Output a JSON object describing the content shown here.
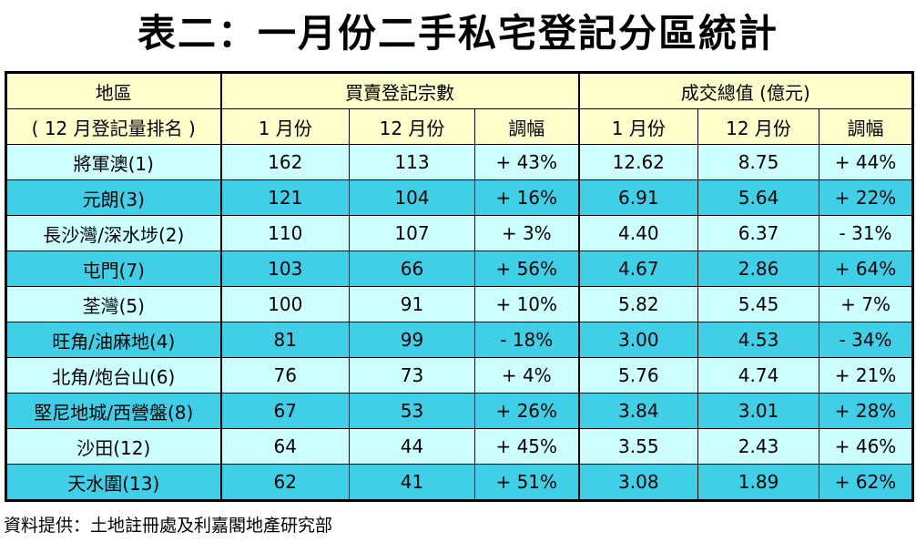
{
  "title": "表二：一月份二手私宅登記分區統計",
  "table": {
    "header_top": [
      "地區",
      "買賣登記宗數",
      "成交總值 (億元)"
    ],
    "header_sub": [
      "( 12 月登記量排名 )",
      "1 月份",
      "12 月份",
      "調幅",
      "1 月份",
      "12 月份",
      "調幅"
    ],
    "rows": [
      [
        "將軍澳(1)",
        "162",
        "113",
        "+ 43%",
        "12.62",
        "8.75",
        "+ 44%"
      ],
      [
        "元朗(3)",
        "121",
        "104",
        "+ 16%",
        "6.91",
        "5.64",
        "+ 22%"
      ],
      [
        "長沙灣/深水埗(2)",
        "110",
        "107",
        "+ 3%",
        "4.40",
        "6.37",
        "- 31%"
      ],
      [
        "屯門(7)",
        "103",
        "66",
        "+ 56%",
        "4.67",
        "2.86",
        "+ 64%"
      ],
      [
        "荃灣(5)",
        "100",
        "91",
        "+ 10%",
        "5.82",
        "5.45",
        "+ 7%"
      ],
      [
        "旺角/油麻地(4)",
        "81",
        "99",
        "- 18%",
        "3.00",
        "4.53",
        "- 34%"
      ],
      [
        "北角/炮台山(6)",
        "76",
        "73",
        "+ 4%",
        "5.76",
        "4.74",
        "+ 21%"
      ],
      [
        "堅尼地城/西營盤(8)",
        "67",
        "53",
        "+ 26%",
        "3.84",
        "3.01",
        "+ 28%"
      ],
      [
        "沙田(12)",
        "64",
        "44",
        "+ 45%",
        "3.55",
        "2.43",
        "+ 46%"
      ],
      [
        "天水圍(13)",
        "62",
        "41",
        "+ 51%",
        "3.08",
        "1.89",
        "+ 62%"
      ]
    ]
  },
  "source": "資料提供：土地註冊處及利嘉閣地產研究部"
}
